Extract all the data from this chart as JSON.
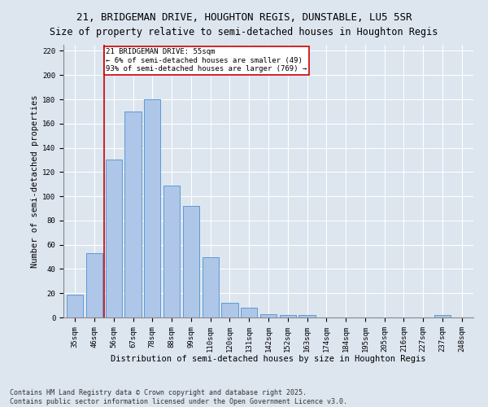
{
  "title": "21, BRIDGEMAN DRIVE, HOUGHTON REGIS, DUNSTABLE, LU5 5SR",
  "subtitle": "Size of property relative to semi-detached houses in Houghton Regis",
  "xlabel": "Distribution of semi-detached houses by size in Houghton Regis",
  "ylabel": "Number of semi-detached properties",
  "categories": [
    "35sqm",
    "46sqm",
    "56sqm",
    "67sqm",
    "78sqm",
    "88sqm",
    "99sqm",
    "110sqm",
    "120sqm",
    "131sqm",
    "142sqm",
    "152sqm",
    "163sqm",
    "174sqm",
    "184sqm",
    "195sqm",
    "205sqm",
    "216sqm",
    "227sqm",
    "237sqm",
    "248sqm"
  ],
  "values": [
    19,
    53,
    130,
    170,
    180,
    109,
    92,
    50,
    12,
    8,
    3,
    2,
    2,
    0,
    0,
    0,
    0,
    0,
    0,
    2,
    0
  ],
  "bar_color": "#aec6e8",
  "bar_edge_color": "#5b9bd5",
  "vline_x_idx": 1.5,
  "vline_color": "#cc0000",
  "annotation_text": "21 BRIDGEMAN DRIVE: 55sqm\n← 6% of semi-detached houses are smaller (49)\n93% of semi-detached houses are larger (769) →",
  "annotation_box_color": "#ffffff",
  "annotation_box_edge": "#cc0000",
  "ylim": [
    0,
    225
  ],
  "yticks": [
    0,
    20,
    40,
    60,
    80,
    100,
    120,
    140,
    160,
    180,
    200,
    220
  ],
  "background_color": "#dde5ef",
  "plot_background": "#dde5ef",
  "title_fontsize": 9,
  "axis_label_fontsize": 7.5,
  "tick_fontsize": 6.5,
  "footer_text": "Contains HM Land Registry data © Crown copyright and database right 2025.\nContains public sector information licensed under the Open Government Licence v3.0.",
  "footer_fontsize": 6
}
